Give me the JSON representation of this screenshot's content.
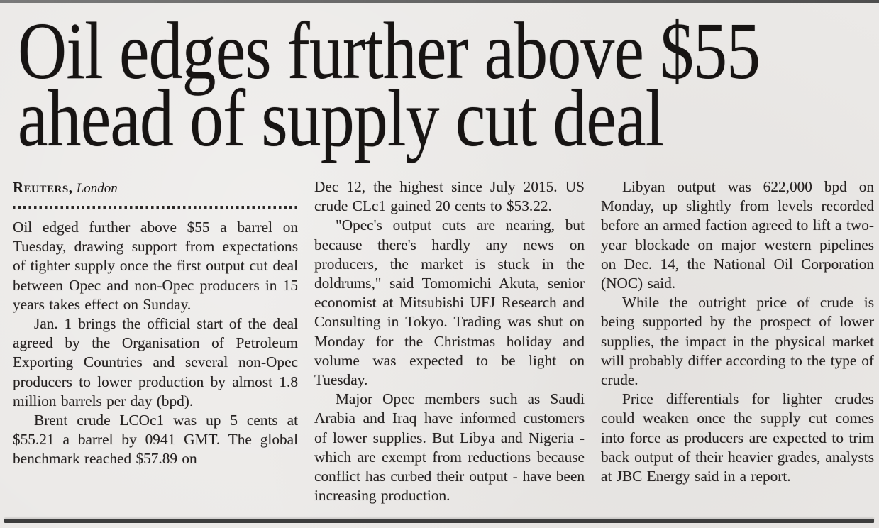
{
  "page": {
    "paper_color": "#ebe9e7",
    "ink_color": "#242120",
    "top_rule_color": "#6e6e6e",
    "bottom_rule_color": "#3d3d3d"
  },
  "article": {
    "headline_line1": "Oil edges further above $55",
    "headline_line2": "ahead of supply cut deal",
    "byline": {
      "agency": "Reuters,",
      "location": "London"
    },
    "columns": [
      {
        "paragraphs": [
          {
            "indent": false,
            "text": "Oil edged further above $55 a barrel on Tuesday, drawing support from expectations of tighter supply once the first output cut deal between Opec and non-Opec producers in 15 years takes effect on Sunday."
          },
          {
            "indent": true,
            "text": "Jan. 1 brings the official start of the deal agreed by the Organisation of Petroleum Exporting Countries and several non-Opec producers to lower production by almost 1.8 million barrels per day (bpd)."
          },
          {
            "indent": true,
            "text": "Brent crude LCOc1 was up 5 cents at $55.21 a barrel by 0941 GMT. The global benchmark reached $57.89 on"
          }
        ]
      },
      {
        "paragraphs": [
          {
            "indent": false,
            "text": "Dec 12, the highest since July 2015. US crude CLc1 gained 20 cents to $53.22."
          },
          {
            "indent": true,
            "text": "\"Opec's output cuts are nearing, but because there's hardly any news on producers, the market is stuck in the doldrums,\" said Tomomichi Akuta, senior economist at Mitsubishi UFJ Research and Consulting in Tokyo. Trading was shut on Monday for the Christmas holiday and volume was expected to be light on Tuesday."
          },
          {
            "indent": true,
            "text": "Major Opec members such as Saudi Arabia and Iraq have informed customers of lower supplies. But Libya and Nigeria - which are exempt from reductions because conflict has curbed their output - have been increasing production."
          }
        ]
      },
      {
        "paragraphs": [
          {
            "indent": true,
            "text": "Libyan output was 622,000 bpd on Monday, up slightly from levels recorded before an armed faction agreed to lift a two-year blockade on major western pipelines on Dec. 14, the National Oil Corporation (NOC) said."
          },
          {
            "indent": true,
            "text": "While the outright price of crude is being supported by the prospect of lower supplies, the impact in the physi­cal market will probably differ accord­ing to the type of crude."
          },
          {
            "indent": true,
            "text": "Price differentials for lighter crudes could weaken once the supply cut comes into force as producers are expected to trim back output of their heavier grades, analysts at JBC Energy said in a report."
          }
        ]
      }
    ]
  }
}
